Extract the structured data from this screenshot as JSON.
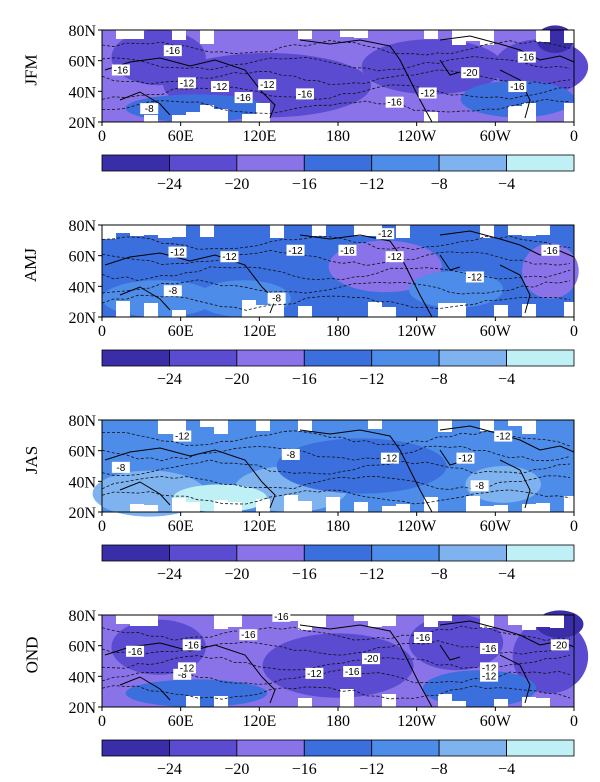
{
  "colors": {
    "bins": [
      "#3a2ea8",
      "#5a4bd0",
      "#8a73e8",
      "#3b6fdd",
      "#4d8ce8",
      "#7fb3f0",
      "#bff0f5"
    ],
    "land_mask": "#ffffff",
    "coast": "#000000"
  },
  "axes": {
    "x_ticks": [
      "0",
      "60E",
      "120E",
      "180",
      "120W",
      "60W",
      "0"
    ],
    "y_ticks": [
      "80N",
      "60N",
      "40N",
      "20N"
    ]
  },
  "colorbar": {
    "labels": [
      "−24",
      "−20",
      "−16",
      "−12",
      "−8",
      "−4"
    ]
  },
  "panels": [
    {
      "season": "JFM",
      "contour_labels": [
        "-16",
        "-16",
        "-16",
        "-16",
        "-20",
        "-16",
        "-12",
        "-16",
        "-12",
        "-12",
        "-16",
        "-12",
        "-8"
      ],
      "dominant_bin": 2
    },
    {
      "season": "AMJ",
      "contour_labels": [
        "-12",
        "-12",
        "-12",
        "-16",
        "-12",
        "-12",
        "-16",
        "-12",
        "-8",
        "-8"
      ],
      "dominant_bin": 3
    },
    {
      "season": "JAS",
      "contour_labels": [
        "-12",
        "-8",
        "-12",
        "-12",
        "-12",
        "-8",
        "-8"
      ],
      "dominant_bin": 4
    },
    {
      "season": "OND",
      "contour_labels": [
        "-16",
        "-16",
        "-16",
        "-16",
        "-16",
        "-20",
        "-12",
        "-8",
        "-12",
        "-20",
        "-16",
        "-12",
        "-12",
        "-16"
      ],
      "dominant_bin": 2
    }
  ]
}
